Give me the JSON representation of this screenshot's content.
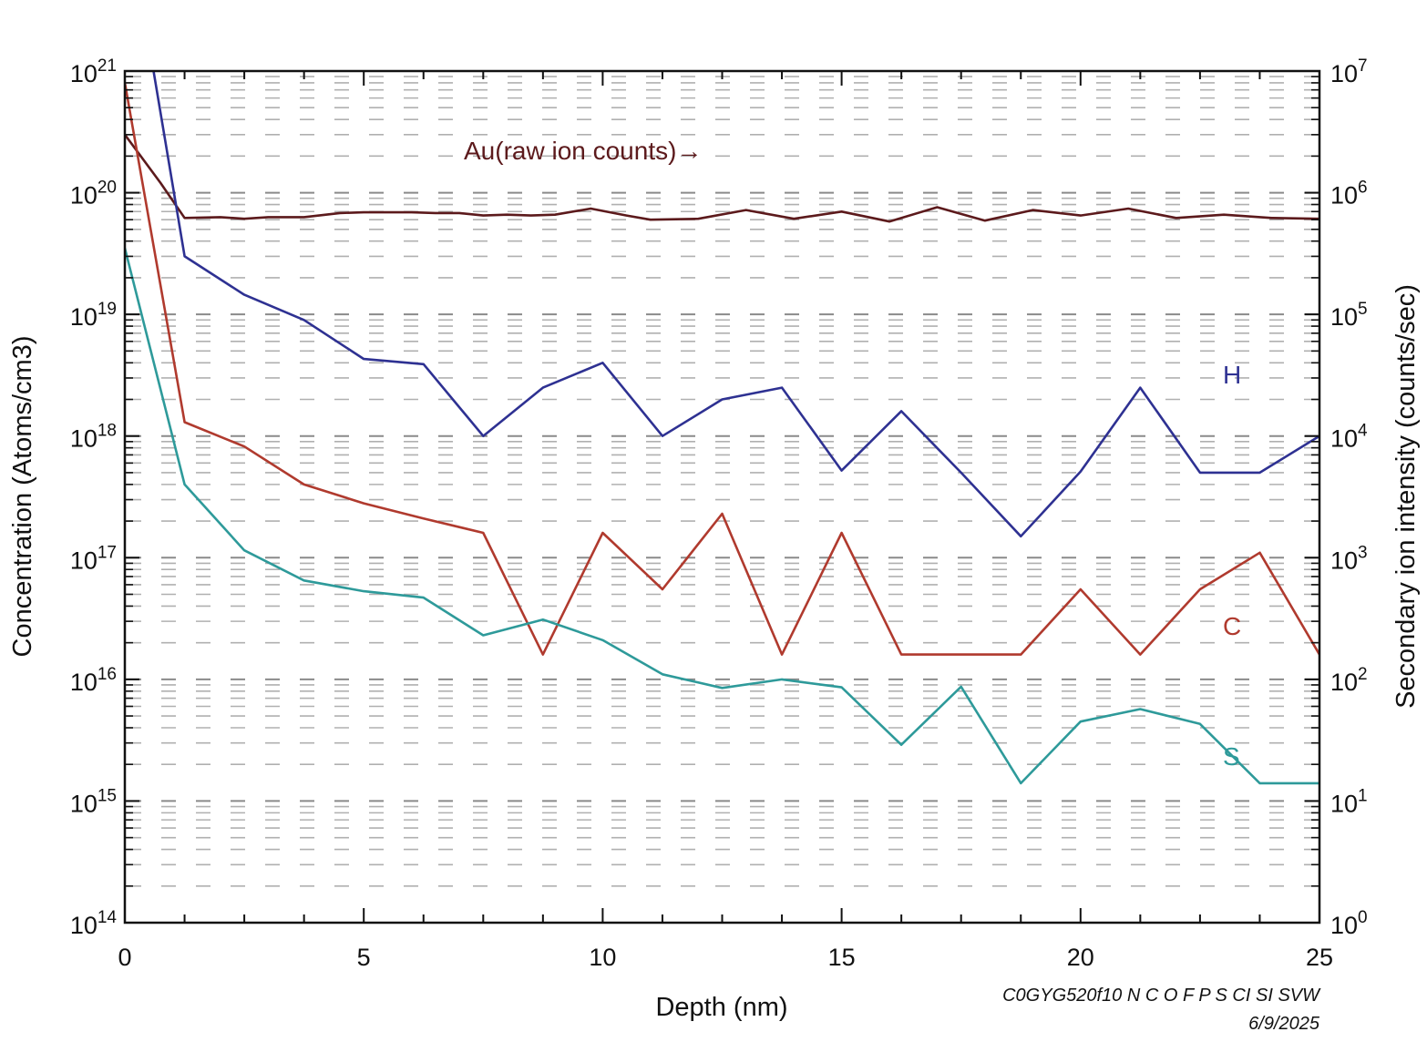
{
  "chart_data": {
    "type": "line",
    "xlabel": "Depth (nm)",
    "ylabel_left": "Concentration (Atoms/cm3)",
    "ylabel_right": "Secondary ion intensity (counts/sec)",
    "xlim": [
      0,
      25
    ],
    "ylim_left": [
      100000000000000.0,
      1e+21
    ],
    "ylim_right": [
      1,
      10000000.0
    ],
    "yscale": "log",
    "x_ticks": [
      "0",
      "5",
      "10",
      "15",
      "20",
      "25"
    ],
    "y_left_ticks": [
      {
        "base": "10",
        "exp": "14"
      },
      {
        "base": "10",
        "exp": "15"
      },
      {
        "base": "10",
        "exp": "16"
      },
      {
        "base": "10",
        "exp": "17"
      },
      {
        "base": "10",
        "exp": "18"
      },
      {
        "base": "10",
        "exp": "19"
      },
      {
        "base": "10",
        "exp": "20"
      },
      {
        "base": "10",
        "exp": "21"
      }
    ],
    "y_right_ticks": [
      {
        "base": "10",
        "exp": "0"
      },
      {
        "base": "10",
        "exp": "1"
      },
      {
        "base": "10",
        "exp": "2"
      },
      {
        "base": "10",
        "exp": "3"
      },
      {
        "base": "10",
        "exp": "4"
      },
      {
        "base": "10",
        "exp": "5"
      },
      {
        "base": "10",
        "exp": "6"
      },
      {
        "base": "10",
        "exp": "7"
      }
    ],
    "grid": "dashed",
    "series": [
      {
        "name": "Au(raw ion counts)→",
        "axis": "right",
        "color": "#5c1a1c",
        "x": [
          0,
          0.75,
          1.25,
          2.0,
          2.5,
          3.0,
          3.75,
          4.5,
          5.0,
          6.0,
          6.5,
          7.0,
          7.5,
          8.0,
          8.5,
          9.0,
          9.75,
          10.5,
          11.0,
          12.0,
          13.0,
          14.0,
          15.0,
          16.0,
          17.0,
          18.0,
          19.0,
          20.0,
          21.0,
          22.0,
          23.0,
          24.0,
          25.0
        ],
        "y": [
          3000000,
          1200000,
          620000,
          630000,
          610000,
          630000,
          630000,
          680000,
          690000,
          690000,
          680000,
          680000,
          650000,
          660000,
          650000,
          660000,
          740000,
          650000,
          600000,
          610000,
          720000,
          610000,
          700000,
          580000,
          760000,
          590000,
          720000,
          650000,
          740000,
          620000,
          660000,
          620000,
          610000
        ]
      },
      {
        "name": "H",
        "axis": "left",
        "color": "#2e3192",
        "x": [
          0.6,
          1.25,
          2.5,
          3.75,
          5.0,
          6.25,
          7.5,
          8.75,
          10.0,
          11.25,
          12.5,
          13.75,
          15.0,
          16.25,
          17.5,
          18.75,
          20.0,
          21.25,
          22.5,
          23.75,
          25.0,
          25.5
        ],
        "y": [
          1e+21,
          3e+19,
          1.45e+19,
          9e+18,
          4.3e+18,
          3.9e+18,
          1e+18,
          2.5e+18,
          4e+18,
          1e+18,
          2e+18,
          2.5e+18,
          5.2e+17,
          1.6e+18,
          5e+17,
          1.5e+17,
          5.1e+17,
          2.5e+18,
          5e+17,
          5e+17,
          1e+18,
          7.7e+17
        ]
      },
      {
        "name": "C",
        "axis": "left",
        "color": "#b03a2e",
        "x": [
          0,
          1.25,
          2.5,
          3.75,
          5.0,
          6.25,
          7.5,
          8.75,
          10.0,
          11.25,
          12.5,
          13.75,
          15.0,
          16.25,
          17.5,
          18.75,
          20.0,
          21.25,
          22.5,
          23.75,
          25.0,
          25.5
        ],
        "y": [
          8e+20,
          1.3e+18,
          8.2e+17,
          4e+17,
          2.8e+17,
          2.1e+17,
          1.6e+17,
          1.6e+16,
          1.6e+17,
          5.5e+16,
          2.3e+17,
          1.6e+16,
          1.6e+17,
          1.6e+16,
          1.6e+16,
          1.6e+16,
          5.5e+16,
          1.6e+16,
          5.5e+16,
          1.1e+17,
          1.6e+16,
          1.6e+16
        ]
      },
      {
        "name": "S",
        "axis": "left",
        "color": "#2e9a9a",
        "x": [
          0,
          1.25,
          2.5,
          3.75,
          5.0,
          6.25,
          7.5,
          8.75,
          10.0,
          11.25,
          12.5,
          13.75,
          15.0,
          16.25,
          17.5,
          18.75,
          20.0,
          21.25,
          22.5,
          23.75,
          25.0,
          25.5
        ],
        "y": [
          3.5e+19,
          4e+17,
          1.15e+17,
          6.5e+16,
          5.3e+16,
          4.7e+16,
          2.3e+16,
          3.1e+16,
          2.1e+16,
          1.1e+16,
          8500000000000000.0,
          1e+16,
          8600000000000000.0,
          2900000000000000.0,
          8700000000000000.0,
          1400000000000000.0,
          4500000000000000.0,
          5700000000000000.0,
          4300000000000000.0,
          1400000000000000.0,
          1400000000000000.0,
          850000000000000.0
        ]
      }
    ]
  },
  "footer": {
    "code": "C0GYG520f10 N C  O F P  S CI SI SVW",
    "date": "6/9/2025"
  }
}
